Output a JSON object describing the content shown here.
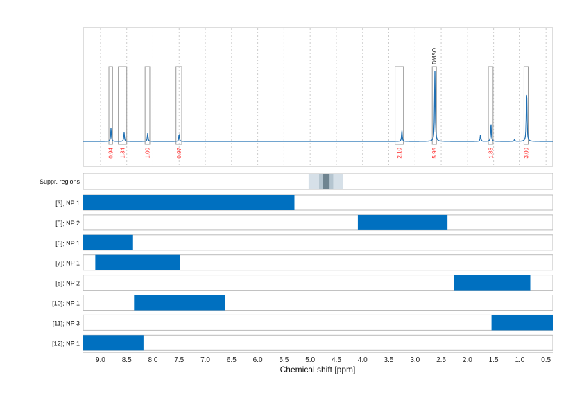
{
  "chart_data": {
    "type": "line",
    "xlabel": "Chemical shift [ppm]",
    "xlim": [
      9.33,
      0.37
    ],
    "x_reversed": true,
    "x_ticks": [
      "9.0",
      "8.5",
      "8.0",
      "7.5",
      "7.0",
      "6.5",
      "6.0",
      "5.5",
      "5.0",
      "4.5",
      "4.0",
      "3.5",
      "3.0",
      "2.5",
      "2.0",
      "1.5",
      "1.0",
      "0.5"
    ],
    "grid": true,
    "spectrum_color": "#1f6fb2",
    "spectrum_peaks": [
      {
        "ppm": 8.8,
        "intensity": 19
      },
      {
        "ppm": 8.55,
        "intensity": 13
      },
      {
        "ppm": 8.1,
        "intensity": 12
      },
      {
        "ppm": 7.5,
        "intensity": 11
      },
      {
        "ppm": 3.25,
        "intensity": 16
      },
      {
        "ppm": 2.62,
        "intensity": 102
      },
      {
        "ppm": 1.75,
        "intensity": 10
      },
      {
        "ppm": 1.55,
        "intensity": 26
      },
      {
        "ppm": 1.1,
        "intensity": 3
      },
      {
        "ppm": 0.87,
        "intensity": 76
      }
    ],
    "integrals": [
      {
        "from": 8.84,
        "to": 8.77,
        "value": "0.94"
      },
      {
        "from": 8.66,
        "to": 8.5,
        "value": "1.34"
      },
      {
        "from": 8.15,
        "to": 8.06,
        "value": "1.00"
      },
      {
        "from": 7.56,
        "to": 7.45,
        "value": "0.97"
      },
      {
        "from": 3.38,
        "to": 3.22,
        "value": "2.10"
      },
      {
        "from": 2.67,
        "to": 2.59,
        "value": "5.95",
        "annotation": "DMSO"
      },
      {
        "from": 1.6,
        "to": 1.51,
        "value": "1.85"
      },
      {
        "from": 0.92,
        "to": 0.84,
        "value": "3.00"
      }
    ],
    "integral_label_color": "#ff2a2a",
    "suppression": {
      "label": "Suppr. regions",
      "regions": [
        {
          "from": 5.03,
          "to": 4.38,
          "shade": "light"
        },
        {
          "from": 4.83,
          "to": 4.56,
          "shade": "mid"
        },
        {
          "from": 4.76,
          "to": 4.63,
          "shade": "dark"
        }
      ]
    },
    "bar_color": "#0070c0",
    "rows": [
      {
        "label": "[3]; NP 1",
        "from": 9.33,
        "to": 5.3
      },
      {
        "label": "[5]; NP 2",
        "from": 4.09,
        "to": 2.38
      },
      {
        "label": "[6]; NP 1",
        "from": 9.33,
        "to": 8.38
      },
      {
        "label": "[7]; NP 1",
        "from": 9.1,
        "to": 7.49
      },
      {
        "label": "[8]; NP 2",
        "from": 2.25,
        "to": 0.8
      },
      {
        "label": "[10]; NP 1",
        "from": 8.36,
        "to": 6.62
      },
      {
        "label": "[11]; NP 3",
        "from": 1.54,
        "to": 0.37
      },
      {
        "label": "[12]; NP 1",
        "from": 9.33,
        "to": 8.18
      }
    ]
  }
}
